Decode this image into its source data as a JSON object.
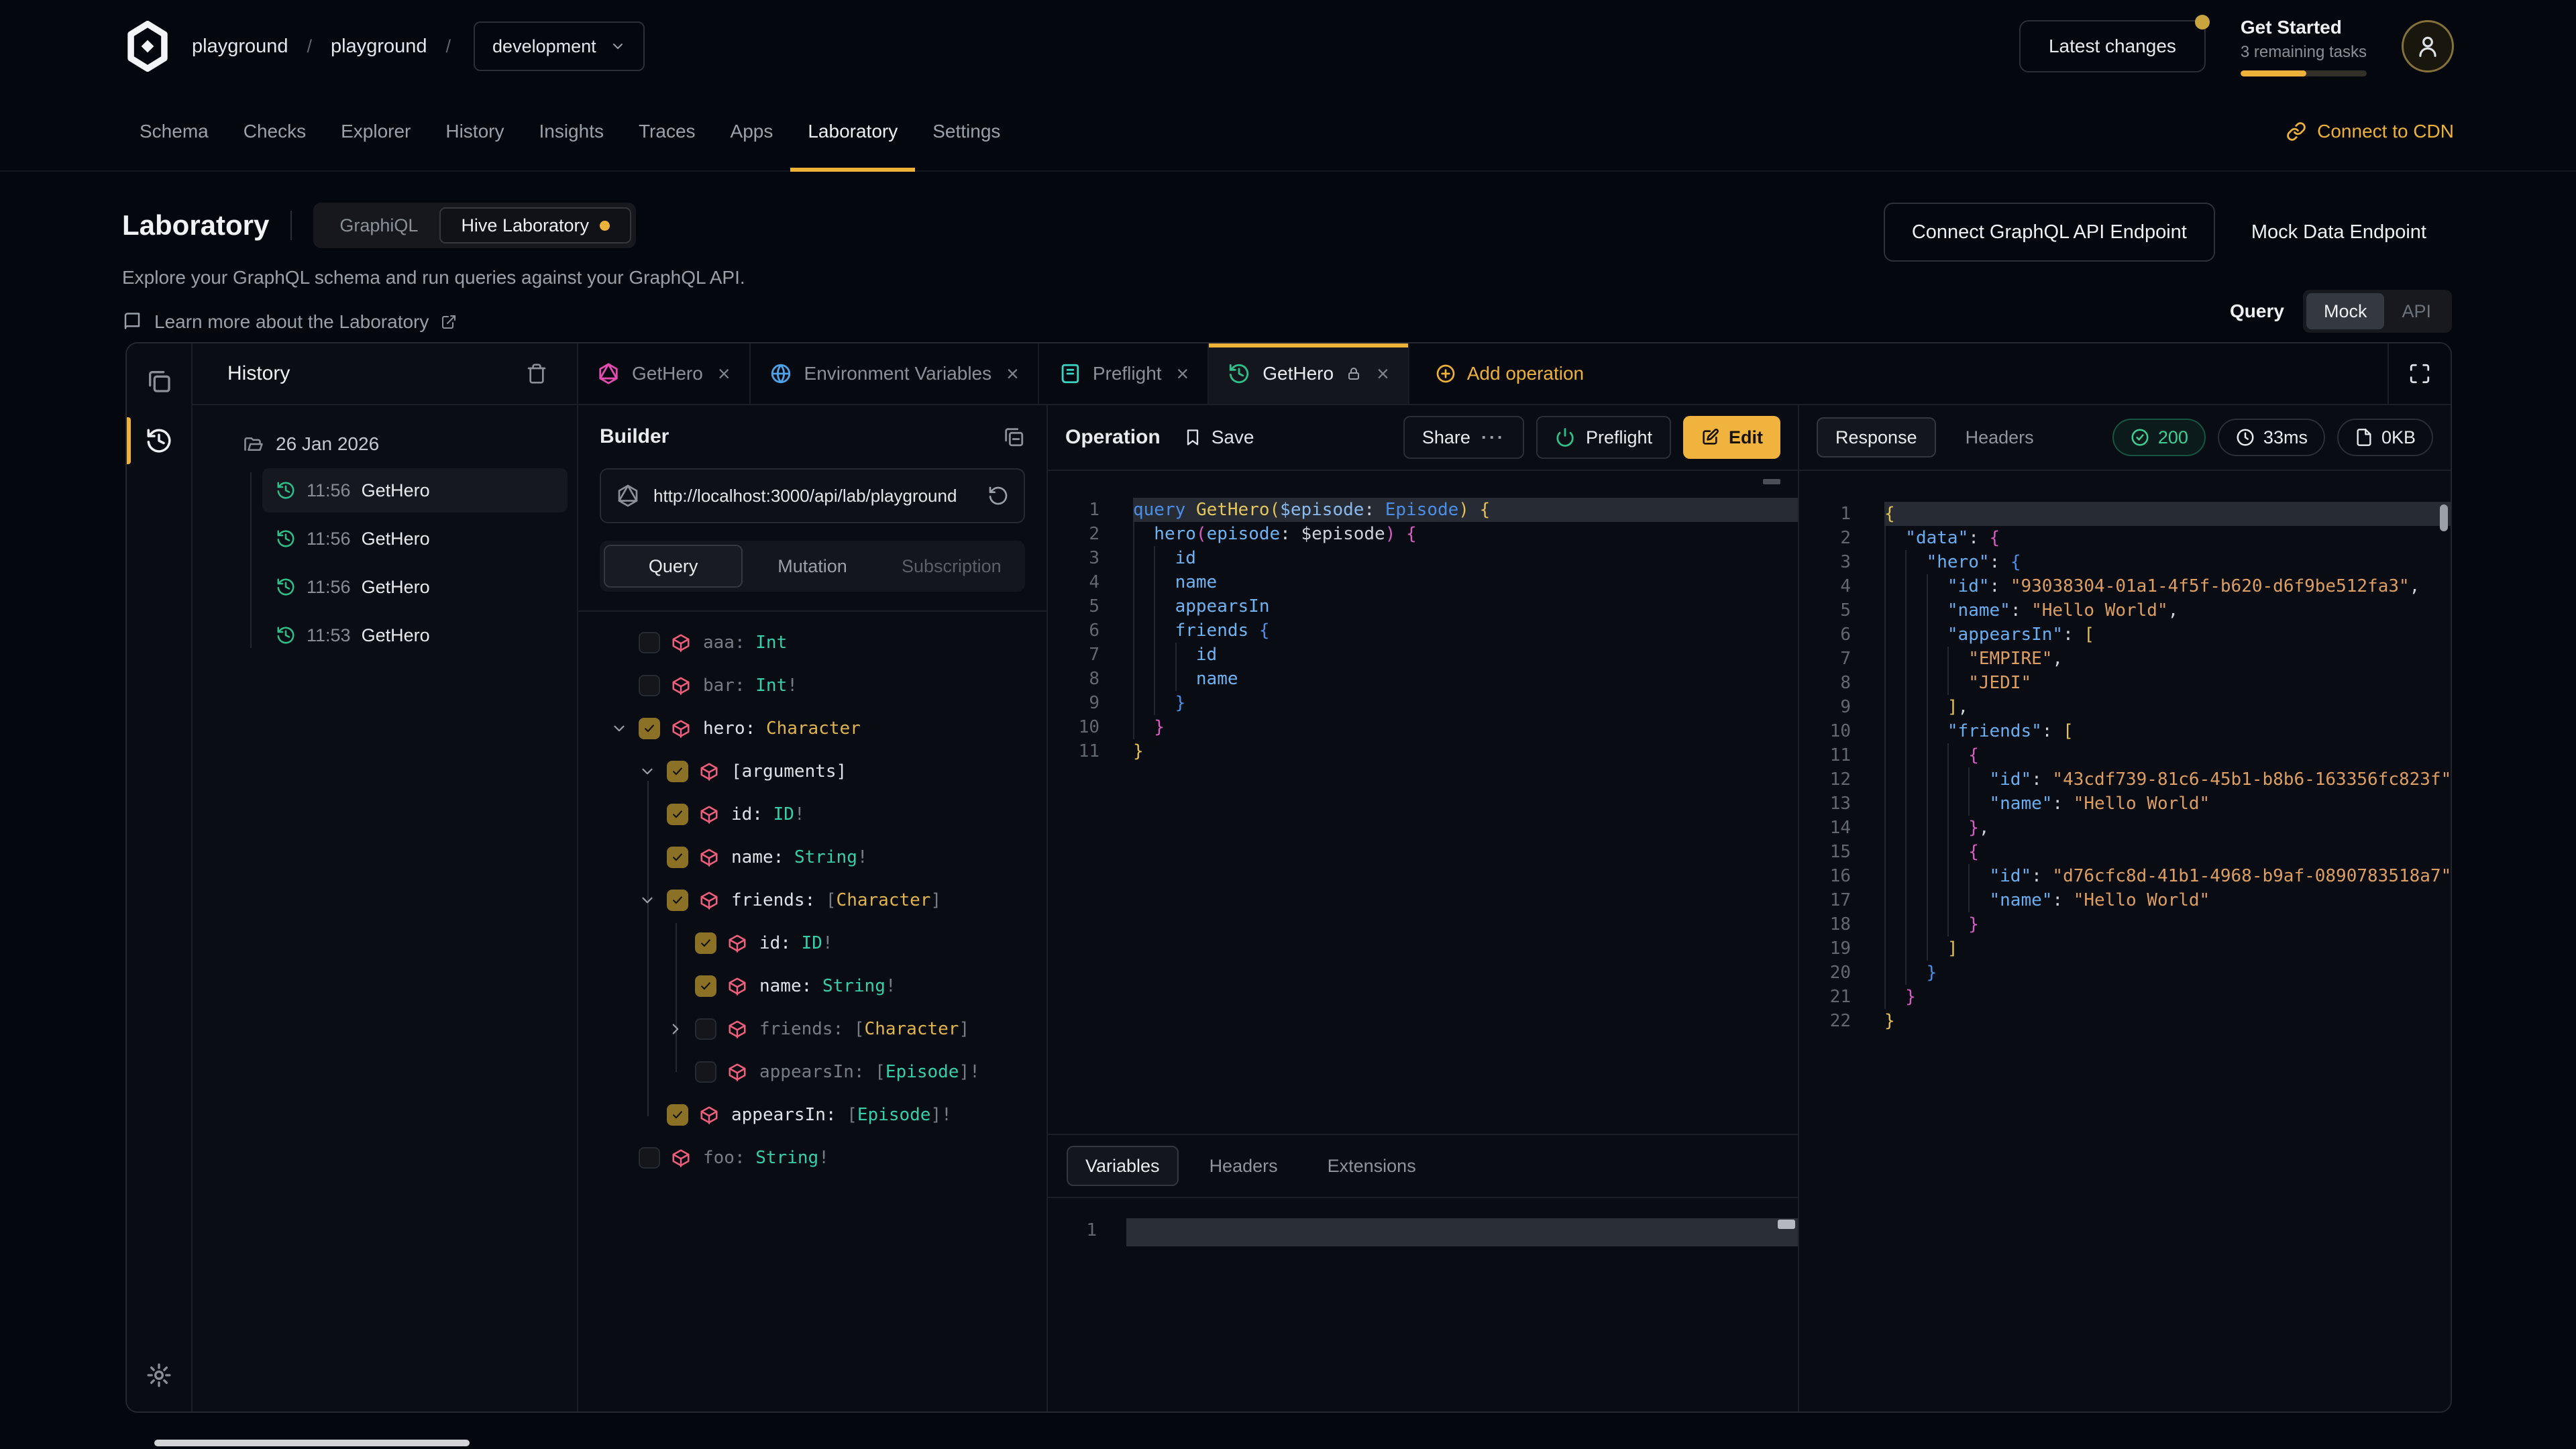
{
  "colors": {
    "accent": "#eeb23a",
    "green": "#2ec08a",
    "cube_pink": "#ef5e7c",
    "type_teal": "#35d0ab",
    "type_gold": "#e0b44d"
  },
  "header": {
    "breadcrumb": {
      "org": "playground",
      "separator": "/",
      "project": "playground",
      "target": "development"
    },
    "latest_changes": "Latest changes",
    "get_started": {
      "title": "Get Started",
      "subtitle": "3 remaining tasks",
      "progress_pct": 52
    },
    "nav": {
      "items": [
        {
          "label": "Schema"
        },
        {
          "label": "Checks"
        },
        {
          "label": "Explorer"
        },
        {
          "label": "History"
        },
        {
          "label": "Insights"
        },
        {
          "label": "Traces"
        },
        {
          "label": "Apps"
        },
        {
          "label": "Laboratory",
          "active": true
        },
        {
          "label": "Settings"
        }
      ]
    },
    "connect_cdn": "Connect to CDN"
  },
  "intro": {
    "title": "Laboratory",
    "mode_toggle": {
      "options": [
        {
          "label": "GraphiQL"
        },
        {
          "label": "Hive Laboratory",
          "active": true,
          "dot": true
        }
      ]
    },
    "subtitle": "Explore your GraphQL schema and run queries against your GraphQL API.",
    "learn_more": "Learn more about the Laboratory",
    "connect_endpoint": "Connect GraphQL API Endpoint",
    "mock_endpoint": "Mock Data Endpoint",
    "query_label": "Query",
    "query_mode": {
      "options": [
        {
          "label": "Mock",
          "active": true
        },
        {
          "label": "API"
        }
      ]
    }
  },
  "history": {
    "title": "History",
    "date_group": "26 Jan 2026",
    "items": [
      {
        "time": "11:56",
        "name": "GetHero",
        "selected": true
      },
      {
        "time": "11:56",
        "name": "GetHero"
      },
      {
        "time": "11:56",
        "name": "GetHero"
      },
      {
        "time": "11:53",
        "name": "GetHero"
      }
    ]
  },
  "tabs": {
    "items": [
      {
        "icon": "graphql-icon",
        "color": "#e24bb0",
        "label": "GetHero",
        "closable": true
      },
      {
        "icon": "globe-icon",
        "color": "#4da3e8",
        "label": "Environment Variables",
        "closable": true
      },
      {
        "icon": "scroll-icon",
        "color": "#38d6c3",
        "label": "Preflight",
        "closable": true
      },
      {
        "icon": "history-icon",
        "color": "#2ec08a",
        "label": "GetHero",
        "active": true,
        "locked": true,
        "closable": true
      }
    ],
    "add_label": "Add operation"
  },
  "builder": {
    "title": "Builder",
    "url": "http://localhost:3000/api/lab/playground",
    "tabs": [
      {
        "label": "Query",
        "active": true
      },
      {
        "label": "Mutation"
      },
      {
        "label": "Subscription",
        "dim": true
      }
    ],
    "fields": [
      {
        "indent": 0,
        "checked": false,
        "dim": true,
        "name": "aaa:",
        "type": [
          [
            "Int",
            "teal"
          ]
        ]
      },
      {
        "indent": 0,
        "checked": false,
        "dim": true,
        "name": "bar:",
        "type": [
          [
            "Int",
            "teal"
          ],
          [
            "!",
            "dim"
          ]
        ]
      },
      {
        "indent": 0,
        "checked": true,
        "chevron": "down",
        "name": "hero:",
        "type": [
          [
            "Character",
            "gold"
          ]
        ]
      },
      {
        "indent": 1,
        "checked": true,
        "chevron": "down",
        "name": "[arguments]",
        "type": []
      },
      {
        "indent": 1,
        "checked": true,
        "name": "id:",
        "type": [
          [
            "ID",
            "teal"
          ],
          [
            "!",
            "dim"
          ]
        ]
      },
      {
        "indent": 1,
        "checked": true,
        "name": "name:",
        "type": [
          [
            "String",
            "teal"
          ],
          [
            "!",
            "dim"
          ]
        ]
      },
      {
        "indent": 1,
        "checked": true,
        "chevron": "down",
        "name": "friends:",
        "type": [
          [
            "[",
            "dim"
          ],
          [
            "Character",
            "gold"
          ],
          [
            "]",
            "dim"
          ]
        ]
      },
      {
        "indent": 2,
        "checked": true,
        "name": "id:",
        "type": [
          [
            "ID",
            "teal"
          ],
          [
            "!",
            "dim"
          ]
        ]
      },
      {
        "indent": 2,
        "checked": true,
        "name": "name:",
        "type": [
          [
            "String",
            "teal"
          ],
          [
            "!",
            "dim"
          ]
        ]
      },
      {
        "indent": 2,
        "checked": false,
        "dim": true,
        "chevron": "right",
        "name": "friends:",
        "type": [
          [
            "[",
            "dim"
          ],
          [
            "Character",
            "gold"
          ],
          [
            "]",
            "dim"
          ]
        ]
      },
      {
        "indent": 2,
        "checked": false,
        "dim": true,
        "name": "appearsIn:",
        "type": [
          [
            "[",
            "dim"
          ],
          [
            "Episode",
            "teal"
          ],
          [
            "]",
            "dim"
          ],
          [
            "!",
            "dim"
          ]
        ]
      },
      {
        "indent": 1,
        "checked": true,
        "name": "appearsIn:",
        "type": [
          [
            "[",
            "dim"
          ],
          [
            "Episode",
            "teal"
          ],
          [
            "]",
            "dim"
          ],
          [
            "!",
            "dim"
          ]
        ]
      },
      {
        "indent": 0,
        "checked": false,
        "dim": true,
        "name": "foo:",
        "type": [
          [
            "String",
            "teal"
          ],
          [
            "!",
            "dim"
          ]
        ]
      }
    ]
  },
  "operation": {
    "title": "Operation",
    "save_label": "Save",
    "share_label": "Share",
    "preflight_label": "Preflight",
    "edit_label": "Edit",
    "code": [
      {
        "hl": true,
        "ind": 0,
        "seg": [
          [
            "query",
            "kw"
          ],
          [
            " ",
            null
          ],
          [
            "GetHero",
            "fn"
          ],
          [
            "(",
            "bg"
          ],
          [
            "$episode",
            "var"
          ],
          [
            ":",
            null
          ],
          [
            " ",
            null
          ],
          [
            "Episode",
            "typ"
          ],
          [
            ")",
            "bg"
          ],
          [
            " ",
            null
          ],
          [
            "{",
            "bg"
          ]
        ]
      },
      {
        "ind": 1,
        "seg": [
          [
            "hero",
            "fld"
          ],
          [
            "(",
            "bm"
          ],
          [
            "episode",
            "fld"
          ],
          [
            ":",
            null
          ],
          [
            " ",
            null
          ],
          [
            "$episode",
            null
          ],
          [
            ")",
            "bm"
          ],
          [
            " ",
            null
          ],
          [
            "{",
            "bm"
          ]
        ]
      },
      {
        "ind": 2,
        "seg": [
          [
            "id",
            "fld"
          ]
        ]
      },
      {
        "ind": 2,
        "seg": [
          [
            "name",
            "fld"
          ]
        ]
      },
      {
        "ind": 2,
        "seg": [
          [
            "appearsIn",
            "fld"
          ]
        ]
      },
      {
        "ind": 2,
        "seg": [
          [
            "friends",
            "fld"
          ],
          [
            " ",
            null
          ],
          [
            "{",
            "bb"
          ]
        ]
      },
      {
        "ind": 3,
        "seg": [
          [
            "id",
            "fld"
          ]
        ]
      },
      {
        "ind": 3,
        "seg": [
          [
            "name",
            "fld"
          ]
        ]
      },
      {
        "ind": 2,
        "seg": [
          [
            "}",
            "bb"
          ]
        ]
      },
      {
        "ind": 1,
        "seg": [
          [
            "}",
            "bm"
          ]
        ]
      },
      {
        "ind": 0,
        "seg": [
          [
            "}",
            "bg"
          ]
        ]
      }
    ]
  },
  "variables": {
    "tabs": [
      {
        "label": "Variables",
        "active": true
      },
      {
        "label": "Headers"
      },
      {
        "label": "Extensions"
      }
    ],
    "lines": [
      {
        "hl": true,
        "ind": 0,
        "seg": []
      }
    ]
  },
  "response": {
    "tabs": [
      {
        "label": "Response",
        "active": true
      },
      {
        "label": "Headers"
      }
    ],
    "status": "200",
    "time": "33ms",
    "size": "0KB",
    "code": [
      {
        "hl": true,
        "ind": 0,
        "seg": [
          [
            "{",
            "bg"
          ]
        ]
      },
      {
        "ind": 1,
        "seg": [
          [
            "\"data\"",
            "key"
          ],
          [
            ":",
            null
          ],
          [
            " ",
            null
          ],
          [
            "{",
            "bm"
          ]
        ]
      },
      {
        "ind": 2,
        "seg": [
          [
            "\"hero\"",
            "key"
          ],
          [
            ":",
            null
          ],
          [
            " ",
            null
          ],
          [
            "{",
            "bb"
          ]
        ]
      },
      {
        "ind": 3,
        "seg": [
          [
            "\"id\"",
            "key"
          ],
          [
            ":",
            null
          ],
          [
            " ",
            null
          ],
          [
            "\"93038304-01a1-4f5f-b620-d6f9be512fa3\"",
            "str"
          ],
          [
            ",",
            null
          ]
        ]
      },
      {
        "ind": 3,
        "seg": [
          [
            "\"name\"",
            "key"
          ],
          [
            ":",
            null
          ],
          [
            " ",
            null
          ],
          [
            "\"Hello World\"",
            "str"
          ],
          [
            ",",
            null
          ]
        ]
      },
      {
        "ind": 3,
        "seg": [
          [
            "\"appearsIn\"",
            "key"
          ],
          [
            ":",
            null
          ],
          [
            " ",
            null
          ],
          [
            "[",
            "bg"
          ]
        ]
      },
      {
        "ind": 4,
        "seg": [
          [
            "\"EMPIRE\"",
            "str"
          ],
          [
            ",",
            null
          ]
        ]
      },
      {
        "ind": 4,
        "seg": [
          [
            "\"JEDI\"",
            "str"
          ]
        ]
      },
      {
        "ind": 3,
        "seg": [
          [
            "]",
            "bg"
          ],
          [
            ",",
            null
          ]
        ]
      },
      {
        "ind": 3,
        "seg": [
          [
            "\"friends\"",
            "key"
          ],
          [
            ":",
            null
          ],
          [
            " ",
            null
          ],
          [
            "[",
            "bg"
          ]
        ]
      },
      {
        "ind": 4,
        "seg": [
          [
            "{",
            "bm"
          ]
        ]
      },
      {
        "ind": 5,
        "seg": [
          [
            "\"id\"",
            "key"
          ],
          [
            ":",
            null
          ],
          [
            " ",
            null
          ],
          [
            "\"43cdf739-81c6-45b1-b8b6-163356fc823f\"",
            "str"
          ],
          [
            ",",
            null
          ]
        ]
      },
      {
        "ind": 5,
        "seg": [
          [
            "\"name\"",
            "key"
          ],
          [
            ":",
            null
          ],
          [
            " ",
            null
          ],
          [
            "\"Hello World\"",
            "str"
          ]
        ]
      },
      {
        "ind": 4,
        "seg": [
          [
            "}",
            "bm"
          ],
          [
            ",",
            null
          ]
        ]
      },
      {
        "ind": 4,
        "seg": [
          [
            "{",
            "bm"
          ]
        ]
      },
      {
        "ind": 5,
        "seg": [
          [
            "\"id\"",
            "key"
          ],
          [
            ":",
            null
          ],
          [
            " ",
            null
          ],
          [
            "\"d76cfc8d-41b1-4968-b9af-0890783518a7\"",
            "str"
          ],
          [
            ",",
            null
          ]
        ]
      },
      {
        "ind": 5,
        "seg": [
          [
            "\"name\"",
            "key"
          ],
          [
            ":",
            null
          ],
          [
            " ",
            null
          ],
          [
            "\"Hello World\"",
            "str"
          ]
        ]
      },
      {
        "ind": 4,
        "seg": [
          [
            "}",
            "bm"
          ]
        ]
      },
      {
        "ind": 3,
        "seg": [
          [
            "]",
            "bg"
          ]
        ]
      },
      {
        "ind": 2,
        "seg": [
          [
            "}",
            "bb"
          ]
        ]
      },
      {
        "ind": 1,
        "seg": [
          [
            "}",
            "bm"
          ]
        ]
      },
      {
        "ind": 0,
        "seg": [
          [
            "}",
            "bg"
          ]
        ]
      }
    ]
  }
}
